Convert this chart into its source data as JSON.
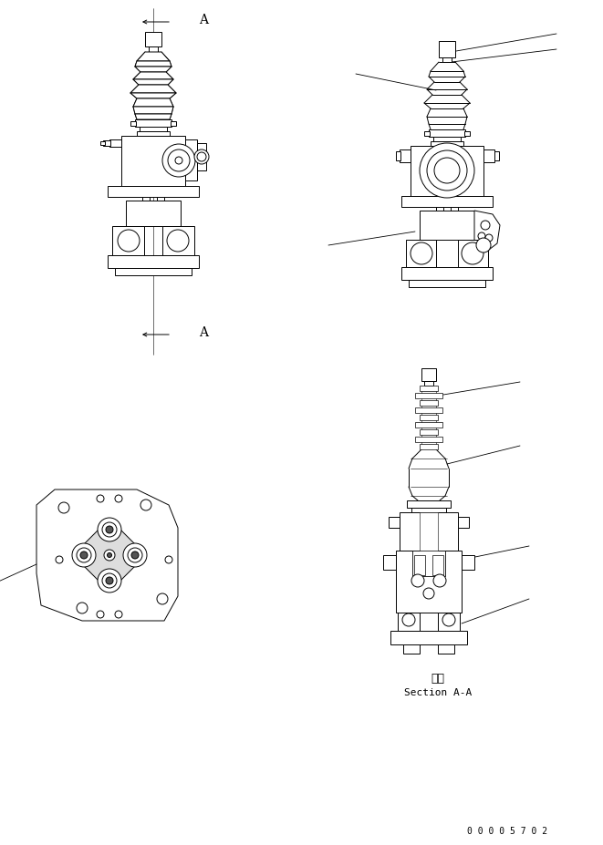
{
  "background_color": "#ffffff",
  "line_color": "#000000",
  "fig_width": 6.61,
  "fig_height": 9.28,
  "section_label": "断面",
  "section_sublabel": "Section A-A",
  "part_number": "0 0 0 0 5 7 0 2"
}
